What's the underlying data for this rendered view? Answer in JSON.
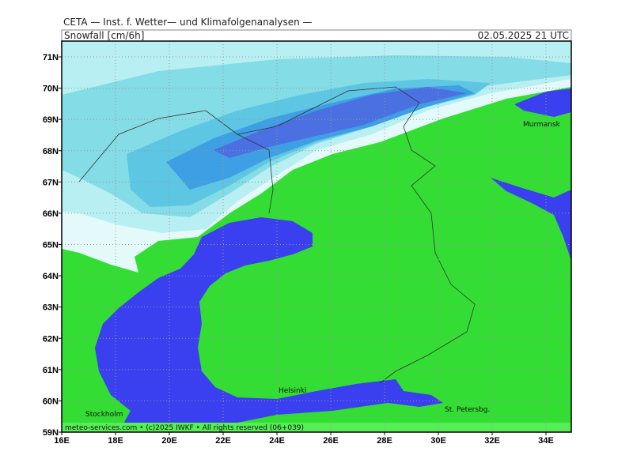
{
  "header": {
    "title": "CETA — Inst. f. Wetter— und Klimafolgenanalysen —",
    "variable": "Snowfall [cm/6h]",
    "valid_time": "02.05.2025 21 UTC"
  },
  "map": {
    "lat_labels": [
      "71N",
      "70N",
      "69N",
      "68N",
      "67N",
      "66N",
      "65N",
      "64N",
      "63N",
      "62N",
      "61N",
      "60N",
      "59N"
    ],
    "lon_labels": [
      "16E",
      "18E",
      "20E",
      "22E",
      "24E",
      "26E",
      "28E",
      "30E",
      "32E",
      "34E"
    ],
    "places": [
      "Murmansk",
      "Helsinki",
      "St. Petersbg.",
      "Stockholm"
    ]
  },
  "footer": "meteo-services.com • (c)2025 IWKF • All rights reserved (06+039)"
}
